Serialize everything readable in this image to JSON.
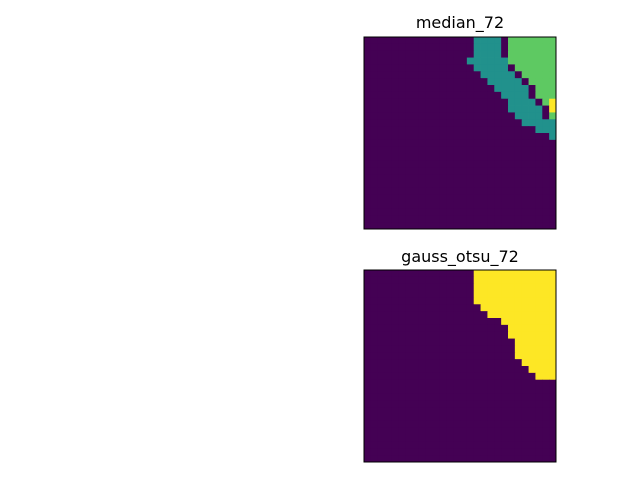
{
  "chart_data": [
    {
      "type": "heatmap",
      "title": "median_72",
      "xticks": [],
      "yticks": [],
      "grid": false,
      "colormap": "viridis",
      "value_range": [
        0,
        3
      ],
      "palette": [
        "#440154",
        "#3b528b",
        "#21918c",
        "#5ec962",
        "#fde725"
      ],
      "grid_size": [
        28,
        28
      ],
      "layers": [
        {
          "value": 0,
          "runs": [
            [
              0,
              2,
              0,
              9
            ],
            [
              2,
              3,
              0,
              11
            ],
            [
              3,
              4,
              0,
              11
            ],
            [
              4,
              5,
              0,
              12
            ],
            [
              5,
              7,
              0,
              13
            ],
            [
              7,
              10,
              0,
              9
            ],
            [
              10,
              13,
              5,
              9
            ],
            [
              13,
              16,
              6,
              10
            ],
            [
              16,
              18,
              7,
              10
            ],
            [
              12,
              13,
              14,
              16
            ],
            [
              13,
              14,
              13,
              17
            ],
            [
              14,
              15,
              12,
              18
            ],
            [
              15,
              16,
              12,
              19
            ],
            [
              16,
              18,
              11,
              20
            ],
            [
              18,
              20,
              10,
              20
            ],
            [
              20,
              22,
              0,
              19
            ],
            [
              22,
              24,
              0,
              19
            ],
            [
              24,
              25,
              0,
              18
            ],
            [
              25,
              26,
              0,
              14
            ],
            [
              26,
              28,
              0,
              14
            ]
          ]
        },
        {
          "value": 2,
          "runs": [
            [
              0,
              2,
              16,
              20
            ],
            [
              2,
              3,
              16,
              20
            ],
            [
              3,
              4,
              15,
              21
            ],
            [
              4,
              5,
              16,
              21
            ],
            [
              5,
              6,
              17,
              22
            ],
            [
              6,
              7,
              18,
              23
            ],
            [
              7,
              8,
              19,
              24
            ],
            [
              8,
              9,
              20,
              24
            ],
            [
              9,
              10,
              21,
              25
            ],
            [
              10,
              11,
              21,
              26
            ],
            [
              11,
              12,
              22,
              26
            ],
            [
              12,
              13,
              23,
              28
            ],
            [
              13,
              14,
              25,
              28
            ],
            [
              14,
              15,
              27,
              28
            ]
          ]
        },
        {
          "value": 3,
          "runs": [
            [
              0,
              2,
              21,
              28
            ],
            [
              2,
              3,
              21,
              28
            ],
            [
              3,
              4,
              21,
              28
            ],
            [
              4,
              5,
              22,
              28
            ],
            [
              5,
              6,
              23,
              28
            ],
            [
              6,
              7,
              24,
              28
            ],
            [
              7,
              8,
              25,
              28
            ],
            [
              8,
              9,
              25,
              28
            ],
            [
              9,
              10,
              26,
              28
            ],
            [
              10,
              11,
              27,
              28
            ],
            [
              11,
              12,
              27,
              28
            ]
          ]
        },
        {
          "value": 4,
          "runs": [
            [
              9,
              11,
              27,
              28
            ]
          ]
        }
      ]
    },
    {
      "type": "heatmap",
      "title": "gauss_otsu_72",
      "xticks": [],
      "yticks": [],
      "grid": false,
      "colormap": "viridis",
      "value_range": [
        0,
        1
      ],
      "palette": [
        "#440154",
        "#fde725"
      ],
      "grid_size": [
        28,
        28
      ],
      "layers": [
        {
          "value": 1,
          "runs": [
            [
              0,
              5,
              16,
              28
            ],
            [
              5,
              6,
              17,
              28
            ],
            [
              6,
              7,
              18,
              28
            ],
            [
              7,
              8,
              20,
              28
            ],
            [
              8,
              10,
              21,
              28
            ],
            [
              10,
              13,
              22,
              28
            ],
            [
              13,
              14,
              23,
              28
            ],
            [
              14,
              15,
              24,
              28
            ],
            [
              15,
              16,
              25,
              28
            ]
          ]
        }
      ]
    }
  ]
}
